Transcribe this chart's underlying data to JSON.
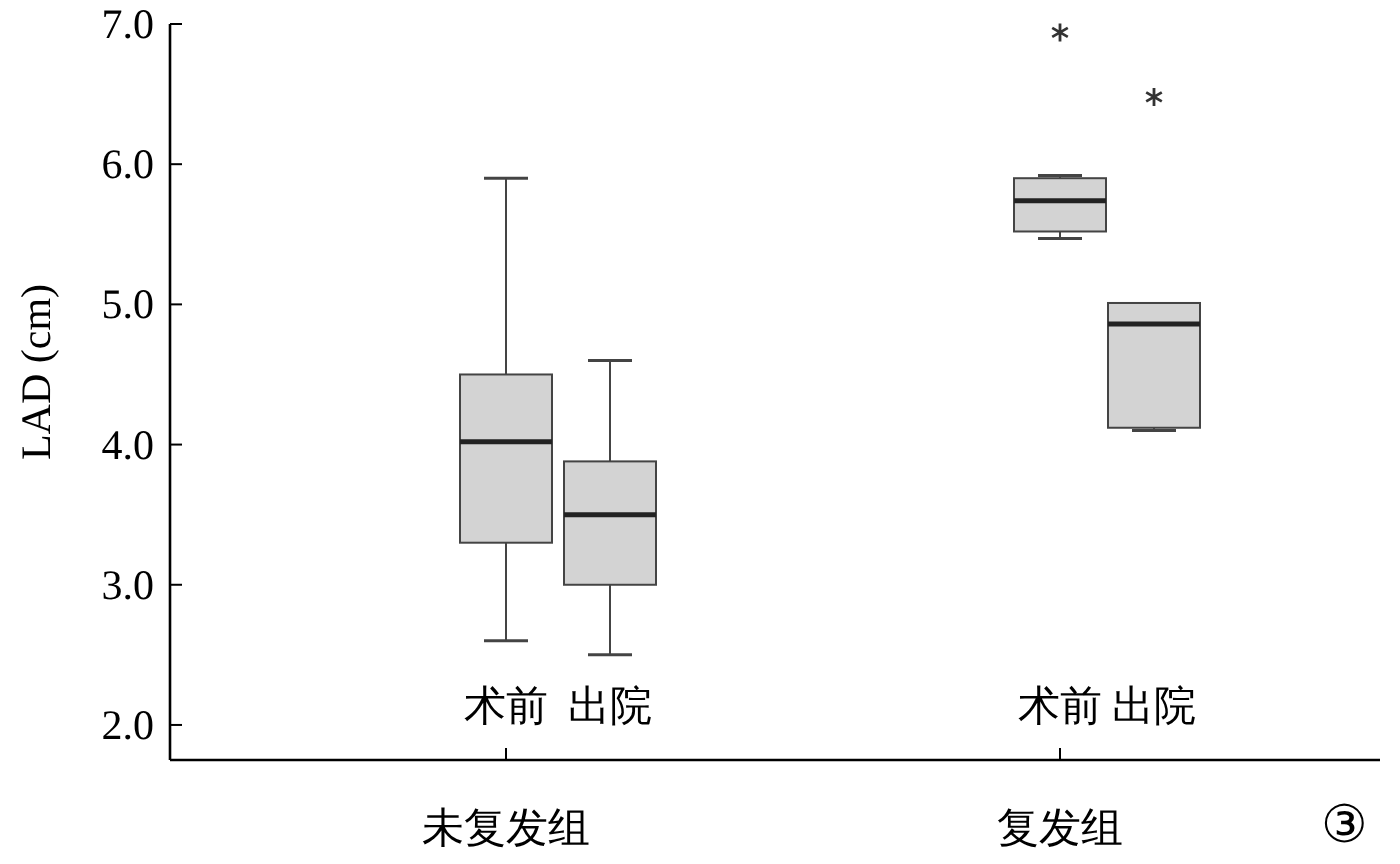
{
  "chart_data": {
    "type": "box",
    "ylabel": "LAD (cm)",
    "categories": [
      "未复发组",
      "复发组"
    ],
    "series": [
      {
        "name": "术前",
        "color": "#d3d3d3",
        "boxes": [
          {
            "low": 2.6,
            "q1": 3.3,
            "median": 4.02,
            "q3": 4.5,
            "high": 5.9
          },
          {
            "low": 5.47,
            "q1": 5.52,
            "median": 5.74,
            "q3": 5.9,
            "high": 5.92,
            "outliers": [
              6.94
            ]
          }
        ]
      },
      {
        "name": "出院",
        "color": "#d3d3d3",
        "boxes": [
          {
            "low": 2.5,
            "q1": 3.0,
            "median": 3.5,
            "q3": 3.88,
            "high": 4.6
          },
          {
            "low": 4.1,
            "q1": 4.12,
            "median": 4.86,
            "q3": 5.01,
            "high": 5.01,
            "outliers": [
              6.48
            ]
          }
        ]
      }
    ],
    "ylim": [
      1.75,
      7.0
    ],
    "yticks": [
      {
        "value": 2,
        "label": "2.0"
      },
      {
        "value": 3,
        "label": "3.0"
      },
      {
        "value": 4,
        "label": "4.0"
      },
      {
        "value": 5,
        "label": "5.0"
      },
      {
        "value": 6,
        "label": "6.0"
      },
      {
        "value": 7,
        "label": "7.0"
      }
    ],
    "annotations": [
      "③"
    ]
  }
}
